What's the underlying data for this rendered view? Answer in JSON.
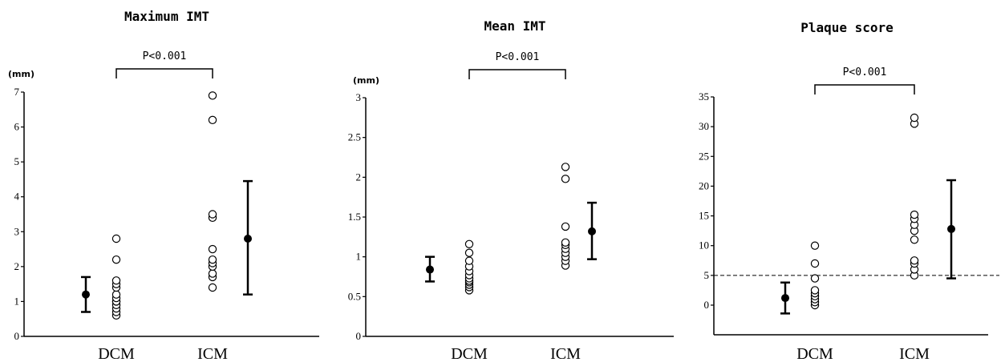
{
  "chart_data": [
    {
      "type": "scatter",
      "title": "Maximum IMT",
      "ylabel": "(mm)",
      "ylim": [
        0,
        7
      ],
      "yticks": [
        0,
        1,
        2,
        3,
        4,
        5,
        6,
        7
      ],
      "categories": [
        "DCM",
        "ICM"
      ],
      "points": {
        "DCM": [
          0.6,
          0.7,
          0.8,
          0.9,
          1.0,
          1.0,
          1.1,
          1.2,
          1.4,
          1.5,
          1.6,
          2.2,
          2.8
        ],
        "ICM": [
          1.4,
          1.7,
          1.8,
          2.0,
          2.1,
          2.2,
          2.5,
          3.4,
          3.5,
          6.2,
          6.9
        ]
      },
      "summary": {
        "DCM": {
          "mean": 1.2,
          "lower": 0.7,
          "upper": 1.7
        },
        "ICM": {
          "mean": 2.8,
          "lower": 1.2,
          "upper": 4.45
        }
      },
      "significance": {
        "text": "P<0.001",
        "level": 7.7
      },
      "reference_line": null
    },
    {
      "type": "scatter",
      "title": "Mean IMT",
      "ylabel": "(mm)",
      "ylim": [
        0,
        3
      ],
      "yticks": [
        0,
        0.5,
        1,
        1.5,
        2,
        2.5,
        3
      ],
      "categories": [
        "DCM",
        "ICM"
      ],
      "points": {
        "DCM": [
          0.58,
          0.62,
          0.65,
          0.68,
          0.7,
          0.73,
          0.77,
          0.82,
          0.88,
          0.95,
          1.05,
          1.16
        ],
        "ICM": [
          0.89,
          0.95,
          1.0,
          1.05,
          1.1,
          1.15,
          1.18,
          1.38,
          1.98,
          2.13
        ]
      },
      "summary": {
        "DCM": {
          "mean": 0.84,
          "lower": 0.69,
          "upper": 1.0
        },
        "ICM": {
          "mean": 1.32,
          "lower": 0.97,
          "upper": 1.68
        }
      },
      "significance": {
        "text": "P<0.001",
        "level": 3.35
      },
      "reference_line": null
    },
    {
      "type": "scatter",
      "title": "Plaque score",
      "ylabel": "",
      "ylim": [
        -5,
        35
      ],
      "yticks": [
        0,
        5,
        10,
        15,
        20,
        25,
        30,
        35
      ],
      "categories": [
        "DCM",
        "ICM"
      ],
      "points": {
        "DCM": [
          0,
          0.5,
          1,
          1.5,
          2,
          2.5,
          4.5,
          7,
          10
        ],
        "ICM": [
          5,
          6,
          7,
          7.5,
          11,
          12.5,
          13.5,
          14.5,
          15.2,
          30.5,
          31.5
        ]
      },
      "summary": {
        "DCM": {
          "mean": 1.2,
          "lower": -1.4,
          "upper": 3.8
        },
        "ICM": {
          "mean": 12.8,
          "lower": 4.5,
          "upper": 21
        }
      },
      "significance": {
        "text": "P<0.001",
        "level": 37.5
      },
      "reference_line": 5
    }
  ]
}
